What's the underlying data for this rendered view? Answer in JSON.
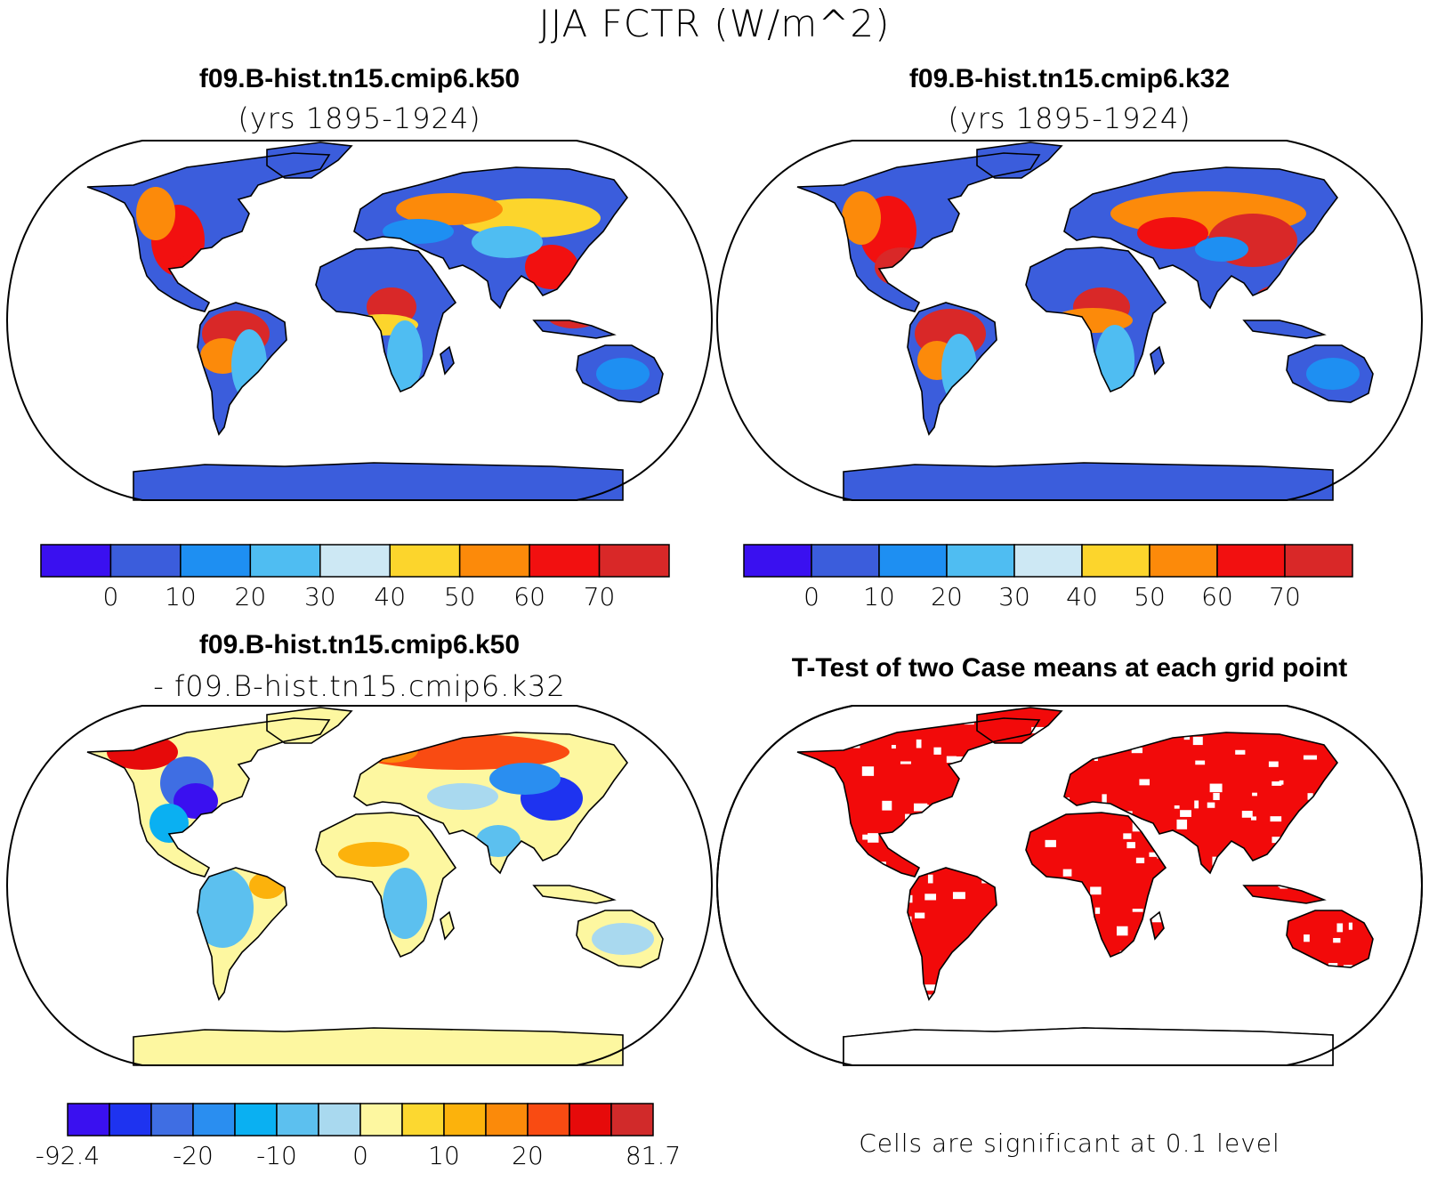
{
  "main_title": "JJA FCTR (W/m^2)",
  "colors": {
    "abs": [
      "#3a10f0",
      "#3b5ddc",
      "#1e8ff2",
      "#4fbdf2",
      "#cde8f4",
      "#fcd52c",
      "#fc8a0a",
      "#f21010",
      "#d92828"
    ],
    "diff": [
      "#3a10f0",
      "#1e33f0",
      "#3f6ee3",
      "#2a8ef0",
      "#0ab0f2",
      "#5cc0ef",
      "#a9d9ef",
      "#fdf7a0",
      "#fcd830",
      "#fcb20c",
      "#fb8a0a",
      "#f94b12",
      "#e60a0a",
      "#d12a2a"
    ],
    "signif": "#f20a0a"
  },
  "panels": {
    "top_left": {
      "title": "f09.B-hist.tn15.cmip6.k50",
      "subtitle": "(yrs 1895-1924)"
    },
    "top_right": {
      "title": "f09.B-hist.tn15.cmip6.k32",
      "subtitle": "(yrs 1895-1924)"
    },
    "bottom_left": {
      "title": "f09.B-hist.tn15.cmip6.k50",
      "subtitle": "- f09.B-hist.tn15.cmip6.k32"
    },
    "bottom_right": {
      "title": "T-Test of two Case means at each grid point",
      "footer": "Cells are significant at 0.1 level"
    }
  },
  "chart_data": [
    {
      "type": "heatmap",
      "title": "f09.B-hist.tn15.cmip6.k50",
      "subtitle": "(yrs 1895-1924)",
      "colorbar_ticks": [
        "0",
        "10",
        "20",
        "30",
        "40",
        "50",
        "60",
        "70"
      ],
      "colorbar_levels": [
        0,
        10,
        20,
        30,
        40,
        50,
        60,
        70
      ]
    },
    {
      "type": "heatmap",
      "title": "f09.B-hist.tn15.cmip6.k32",
      "subtitle": "(yrs 1895-1924)",
      "colorbar_ticks": [
        "0",
        "10",
        "20",
        "30",
        "40",
        "50",
        "60",
        "70"
      ],
      "colorbar_levels": [
        0,
        10,
        20,
        30,
        40,
        50,
        60,
        70
      ]
    },
    {
      "type": "heatmap",
      "title": "f09.B-hist.tn15.cmip6.k50",
      "subtitle": "- f09.B-hist.tn15.cmip6.k32",
      "colorbar_ticks": [
        "-92.4",
        "-20",
        "-10",
        "0",
        "10",
        "20",
        "81.7"
      ],
      "colorbar_range": [
        -92.4,
        81.7
      ]
    },
    {
      "type": "heatmap",
      "title": "T-Test of two Case means at each grid point",
      "note": "Cells are significant at 0.1 level"
    }
  ]
}
